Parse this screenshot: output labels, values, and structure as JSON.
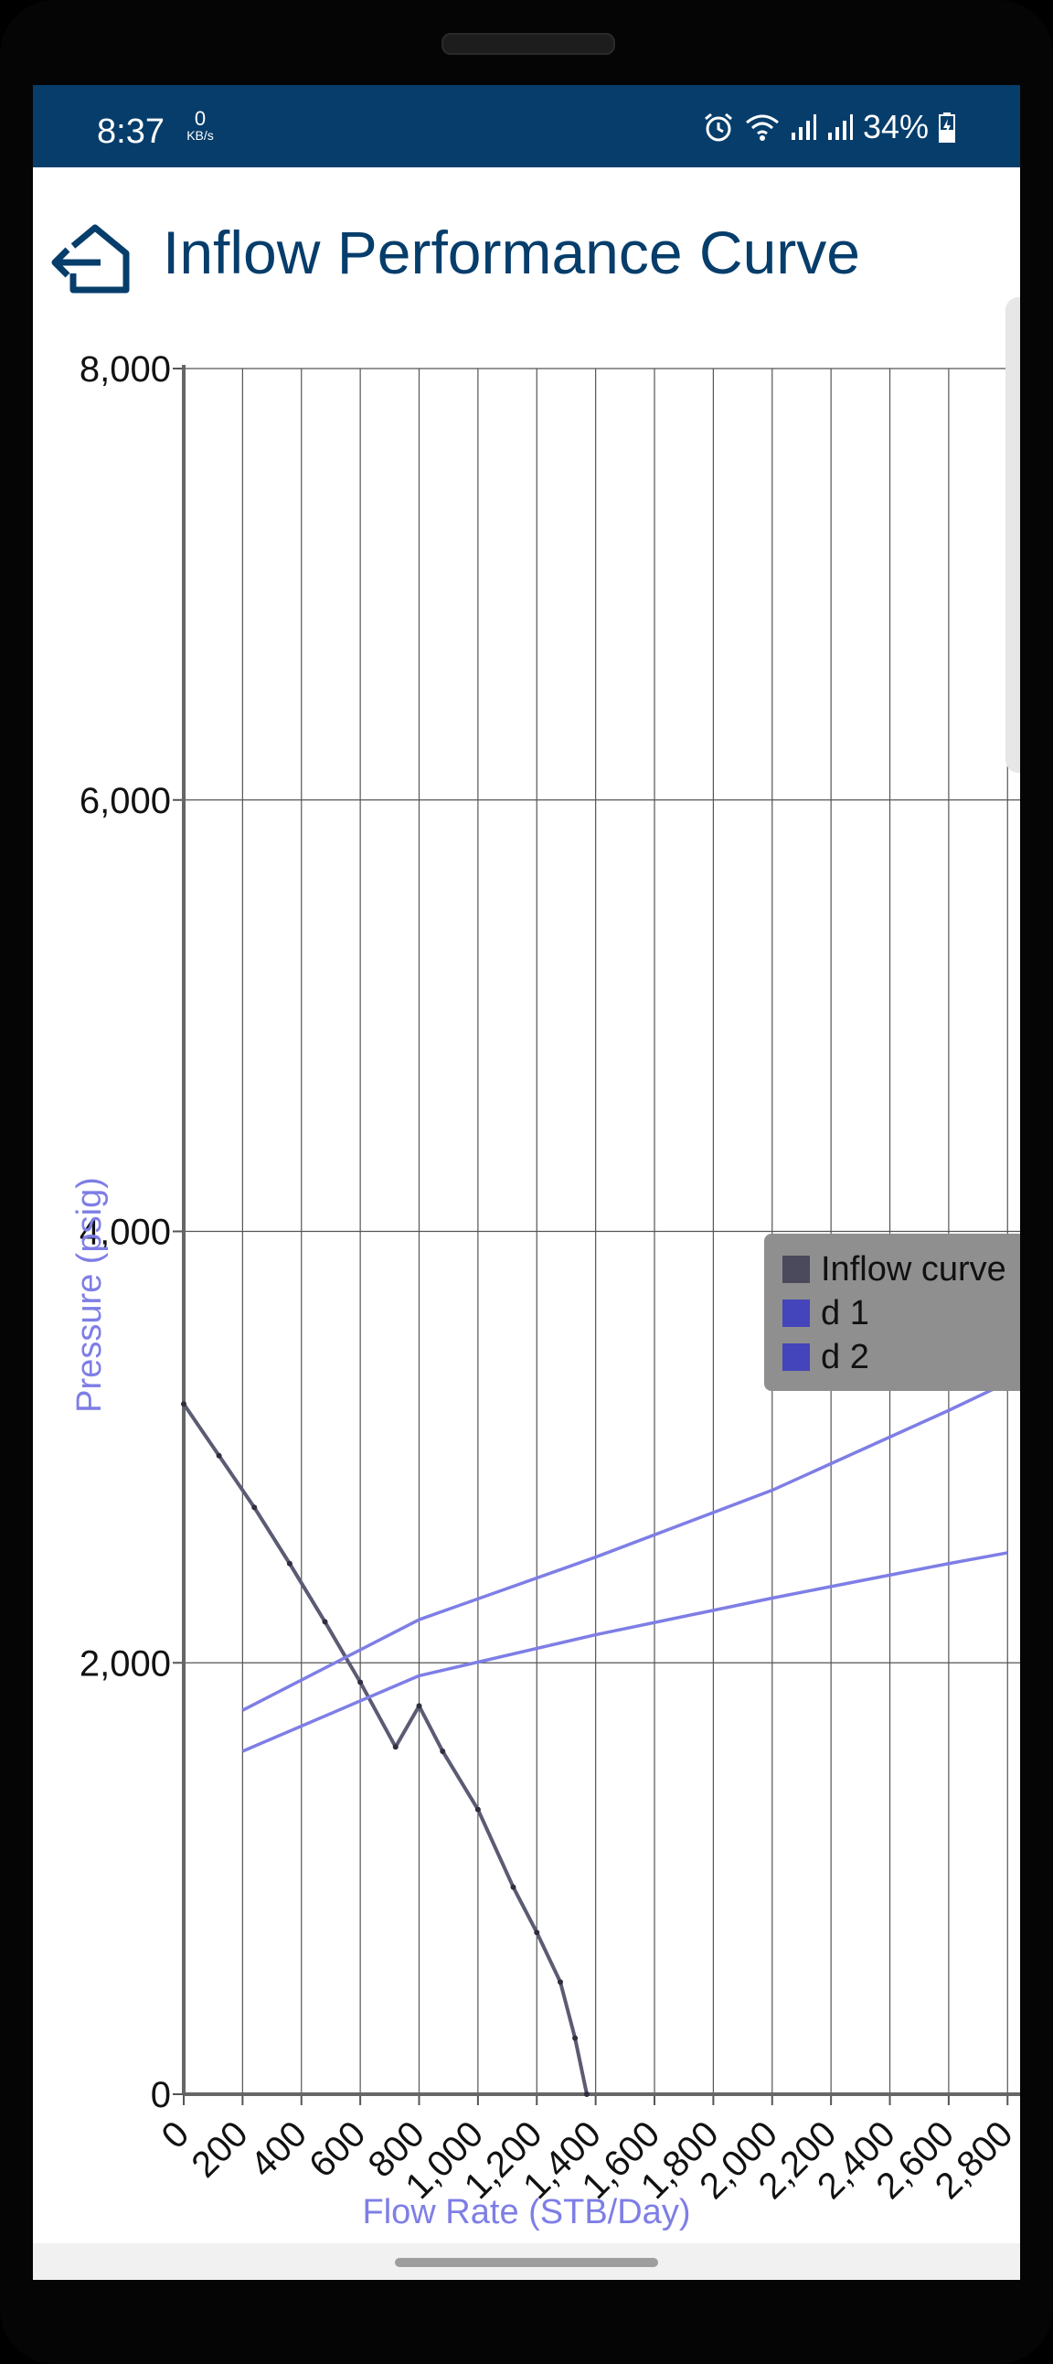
{
  "status_bar": {
    "time": "8:37",
    "net_speed_value": "0",
    "net_speed_unit": "KB/s",
    "battery": "34%",
    "icons": [
      "alarm-icon",
      "wifi-icon",
      "signal-icon",
      "signal-icon",
      "battery-charging-icon"
    ]
  },
  "header": {
    "title": "Inflow Performance Curve",
    "home_icon": "home-back-icon"
  },
  "colors": {
    "header_bg": "#063d6b",
    "title": "#063d6b",
    "inflow_curve": "#5b5b74",
    "d1": "#7e7ee6",
    "d2": "#7e7ee6",
    "legend_swatch_inflow": "#4a4a5c",
    "legend_swatch_d": "#4444bb",
    "legend_bg": "#8f8f8f",
    "axis_title": "#7e7ee6"
  },
  "chart_data": {
    "type": "line",
    "xlabel": "Flow Rate (STB/Day)",
    "ylabel": "Pressure (psig)",
    "xlim": [
      0,
      2800
    ],
    "ylim": [
      0,
      8000
    ],
    "x_ticks": [
      0,
      200,
      400,
      600,
      800,
      1000,
      1200,
      1400,
      1600,
      1800,
      2000,
      2200,
      2400,
      2600,
      2800
    ],
    "x_tick_labels": [
      "0",
      "200",
      "400",
      "600",
      "800",
      "1,000",
      "1,200",
      "1,400",
      "1,600",
      "1,800",
      "2,000",
      "2,200",
      "2,400",
      "2,600",
      "2,800"
    ],
    "y_ticks": [
      0,
      2000,
      4000,
      6000,
      8000
    ],
    "y_tick_labels": [
      "0",
      "2,000",
      "4,000",
      "6,000",
      "8,000"
    ],
    "grid": true,
    "legend_position": "right",
    "series": [
      {
        "name": "Inflow curve",
        "x": [
          0,
          120,
          240,
          360,
          480,
          600,
          720,
          800,
          880,
          1000,
          1120,
          1200,
          1280,
          1330,
          1370
        ],
        "y": [
          3200,
          2960,
          2720,
          2460,
          2190,
          1910,
          1610,
          1800,
          1590,
          1320,
          960,
          750,
          520,
          260,
          0
        ]
      },
      {
        "name": "d 1",
        "x": [
          200,
          800,
          1400,
          2000,
          2600,
          2800
        ],
        "y": [
          1780,
          2200,
          2490,
          2800,
          3170,
          3300
        ]
      },
      {
        "name": "d 2",
        "x": [
          200,
          800,
          1400,
          2000,
          2600,
          2800
        ],
        "y": [
          1590,
          1940,
          2130,
          2300,
          2460,
          2510
        ]
      }
    ]
  }
}
